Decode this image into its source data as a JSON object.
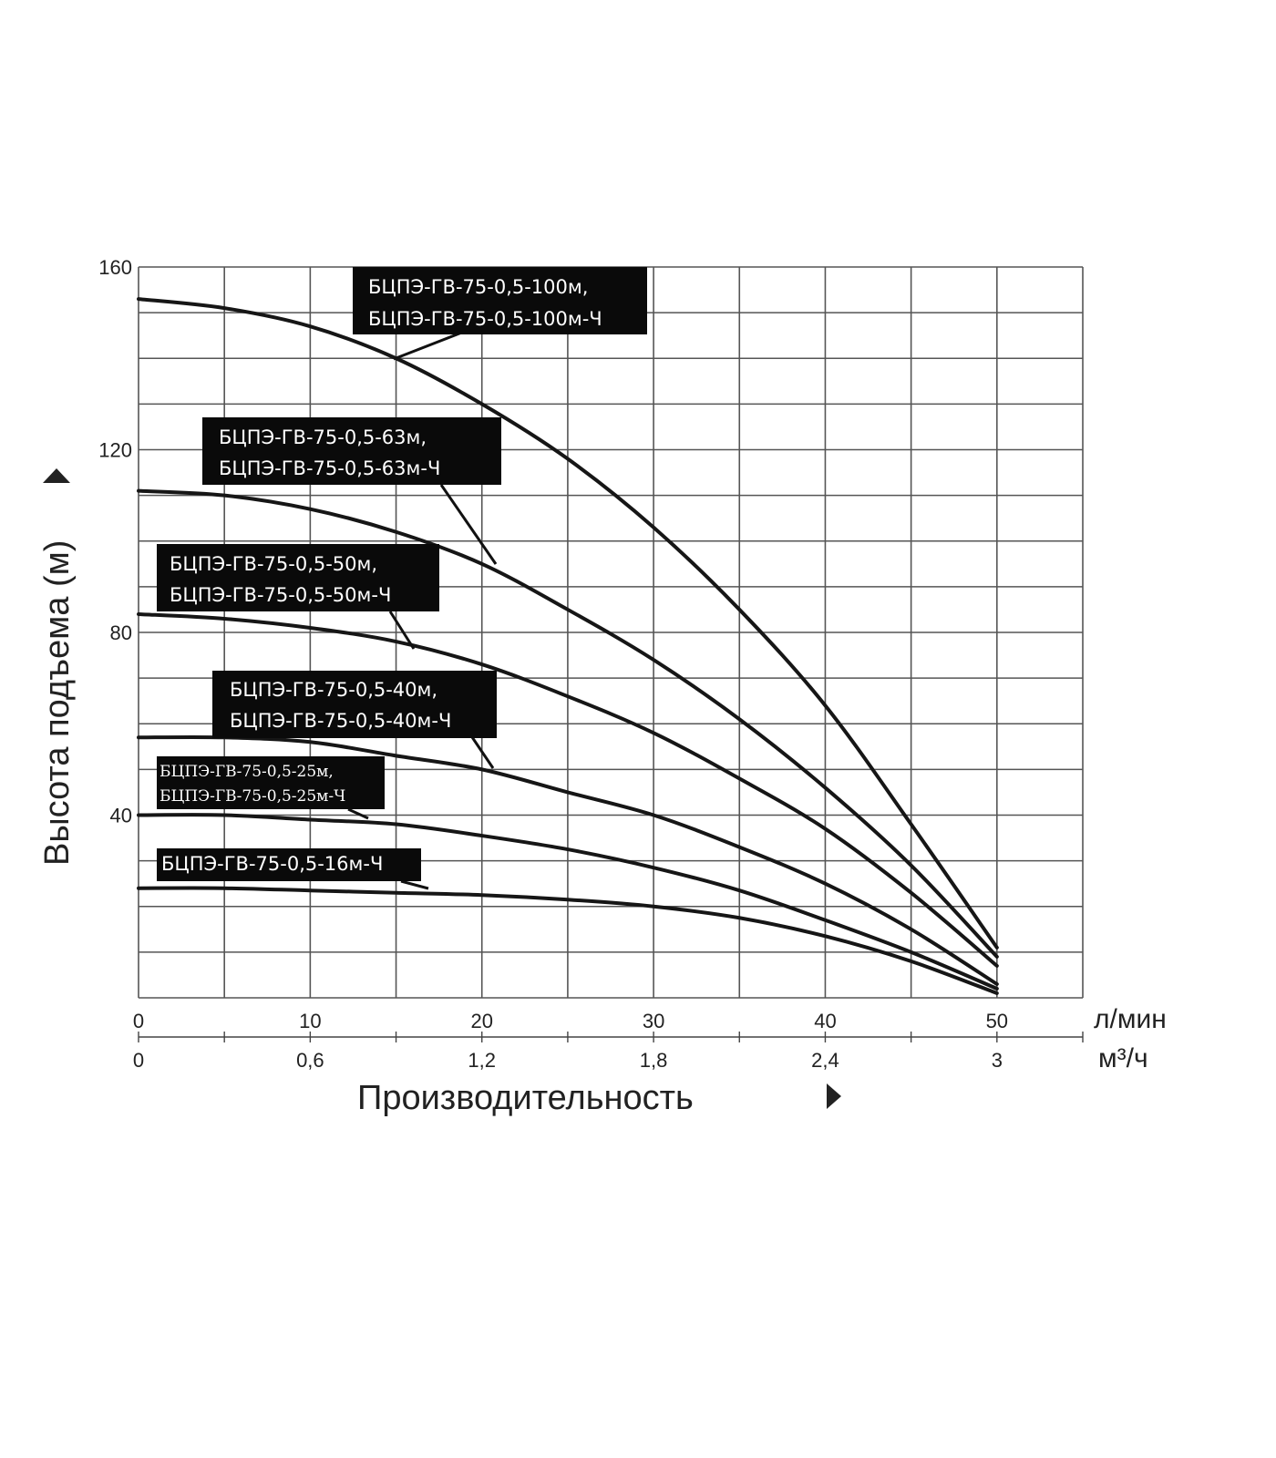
{
  "chart_data": {
    "type": "line",
    "title": "",
    "ylabel": "Высота подъема (м)",
    "xlabel": "Производительность",
    "x_unit_primary": "л/мин",
    "x_unit_secondary": "м³/ч",
    "xlim": [
      0,
      55
    ],
    "ylim": [
      0,
      160
    ],
    "y_ticks": [
      "40",
      "80",
      "120",
      "160"
    ],
    "x_ticks_primary": [
      "0",
      "10",
      "20",
      "30",
      "40",
      "50"
    ],
    "x_ticks_secondary": [
      "0",
      "0,6",
      "1,2",
      "1,8",
      "2,4",
      "3"
    ],
    "grid": true,
    "series": [
      {
        "name": "БЦПЭ-ГВ-75-0,5-100м, БЦПЭ-ГВ-75-0,5-100м-Ч",
        "label_lines": [
          "БЦПЭ-ГВ-75-0,5-100м,",
          "БЦПЭ-ГВ-75-0,5-100м-Ч"
        ],
        "x": [
          0,
          5,
          10,
          15,
          20,
          25,
          30,
          35,
          40,
          45,
          50
        ],
        "y": [
          153,
          151,
          147,
          140,
          130,
          118,
          103,
          85,
          64,
          38,
          11
        ]
      },
      {
        "name": "БЦПЭ-ГВ-75-0,5-63м, БЦПЭ-ГВ-75-0,5-63м-Ч",
        "label_lines": [
          "БЦПЭ-ГВ-75-0,5-63м,",
          "БЦПЭ-ГВ-75-0,5-63м-Ч"
        ],
        "x": [
          0,
          5,
          10,
          15,
          20,
          25,
          30,
          35,
          40,
          45,
          50
        ],
        "y": [
          111,
          110,
          107,
          102,
          95,
          85,
          74,
          61,
          46,
          29,
          9
        ]
      },
      {
        "name": "БЦПЭ-ГВ-75-0,5-50м, БЦПЭ-ГВ-75-0,5-50м-Ч",
        "label_lines": [
          "БЦПЭ-ГВ-75-0,5-50м,",
          "БЦПЭ-ГВ-75-0,5-50м-Ч"
        ],
        "x": [
          0,
          5,
          10,
          15,
          20,
          25,
          30,
          35,
          40,
          45,
          50
        ],
        "y": [
          84,
          83,
          81,
          78,
          73,
          66,
          58,
          48,
          37,
          23,
          7
        ]
      },
      {
        "name": "БЦПЭ-ГВ-75-0,5-40м, БЦПЭ-ГВ-75-0,5-40м-Ч",
        "label_lines": [
          "БЦПЭ-ГВ-75-0,5-40м,",
          "БЦПЭ-ГВ-75-0,5-40м-Ч"
        ],
        "x": [
          0,
          5,
          10,
          15,
          20,
          25,
          30,
          35,
          40,
          45,
          50
        ],
        "y": [
          57,
          57,
          56,
          53,
          50,
          45,
          40,
          33,
          25,
          15,
          3
        ]
      },
      {
        "name": "БЦПЭ-ГВ-75-0,5-25м, БЦПЭ-ГВ-75-0,5-25м-Ч",
        "label_lines": [
          "БЦПЭ-ГВ-75-0,5-25м,",
          "БЦПЭ-ГВ-75-0,5-25м-Ч"
        ],
        "x": [
          0,
          5,
          10,
          15,
          20,
          25,
          30,
          35,
          40,
          45,
          50
        ],
        "y": [
          40,
          40,
          39,
          38,
          35.5,
          32.5,
          28.5,
          23.5,
          17,
          10,
          2
        ]
      },
      {
        "name": "БЦПЭ-ГВ-75-0,5-16м-Ч",
        "label_lines": [
          "БЦПЭ-ГВ-75-0,5-16м-Ч"
        ],
        "x": [
          0,
          5,
          10,
          15,
          20,
          25,
          30,
          35,
          40,
          45,
          50
        ],
        "y": [
          24,
          24,
          23.5,
          23,
          22.5,
          21.5,
          20,
          17.5,
          13.5,
          8,
          1
        ]
      }
    ]
  }
}
